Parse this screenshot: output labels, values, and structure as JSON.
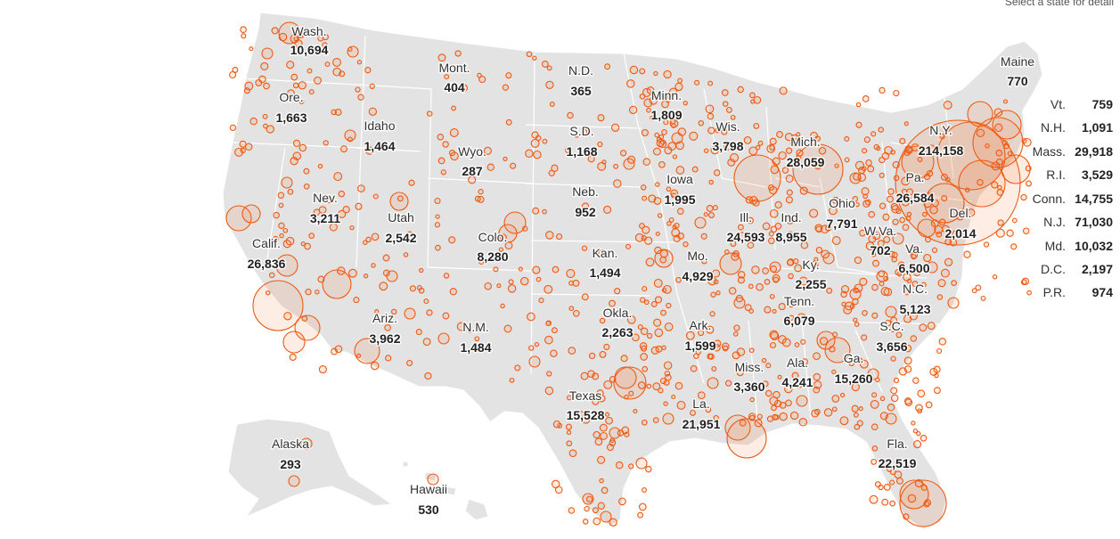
{
  "colors": {
    "land": "#e3e3e3",
    "border": "#ffffff",
    "circle_stroke": "#ee5a12",
    "circle_fill": "#f46e22",
    "text": "#222222"
  },
  "top_note": "Select a state for detail",
  "states": [
    {
      "id": "wash",
      "name": "Wash.",
      "value": "10,694"
    },
    {
      "id": "ore",
      "name": "Ore.",
      "value": "1,663"
    },
    {
      "id": "calif",
      "name": "Calif.",
      "value": "26,836"
    },
    {
      "id": "nev",
      "name": "Nev.",
      "value": "3,211"
    },
    {
      "id": "idaho",
      "name": "Idaho",
      "value": "1,464"
    },
    {
      "id": "mont",
      "name": "Mont.",
      "value": "404"
    },
    {
      "id": "wyo",
      "name": "Wyo.",
      "value": "287"
    },
    {
      "id": "utah",
      "name": "Utah",
      "value": "2,542"
    },
    {
      "id": "ariz",
      "name": "Ariz.",
      "value": "3,962"
    },
    {
      "id": "colo",
      "name": "Colo.",
      "value": "8,280"
    },
    {
      "id": "nm",
      "name": "N.M.",
      "value": "1,484"
    },
    {
      "id": "nd",
      "name": "N.D.",
      "value": "365"
    },
    {
      "id": "sd",
      "name": "S.D.",
      "value": "1,168"
    },
    {
      "id": "neb",
      "name": "Neb.",
      "value": "952"
    },
    {
      "id": "kan",
      "name": "Kan.",
      "value": "1,494"
    },
    {
      "id": "okla",
      "name": "Okla.",
      "value": "2,263"
    },
    {
      "id": "texas",
      "name": "Texas",
      "value": "15,528"
    },
    {
      "id": "minn",
      "name": "Minn.",
      "value": "1,809"
    },
    {
      "id": "iowa",
      "name": "Iowa",
      "value": "1,995"
    },
    {
      "id": "mo",
      "name": "Mo.",
      "value": "4,929"
    },
    {
      "id": "ark",
      "name": "Ark.",
      "value": "1,599"
    },
    {
      "id": "la",
      "name": "La.",
      "value": "21,951"
    },
    {
      "id": "wis",
      "name": "Wis.",
      "value": "3,798"
    },
    {
      "id": "ill",
      "name": "Ill.",
      "value": "24,593"
    },
    {
      "id": "mich",
      "name": "Mich.",
      "value": "28,059"
    },
    {
      "id": "ind",
      "name": "Ind.",
      "value": "8,955"
    },
    {
      "id": "ohio",
      "name": "Ohio",
      "value": "7,791"
    },
    {
      "id": "ky",
      "name": "Ky.",
      "value": "2,255"
    },
    {
      "id": "tenn",
      "name": "Tenn.",
      "value": "6,079"
    },
    {
      "id": "miss",
      "name": "Miss.",
      "value": "3,360"
    },
    {
      "id": "ala",
      "name": "Ala.",
      "value": "4,241"
    },
    {
      "id": "ga",
      "name": "Ga.",
      "value": "15,260"
    },
    {
      "id": "fla",
      "name": "Fla.",
      "value": "22,519"
    },
    {
      "id": "sc",
      "name": "S.C.",
      "value": "3,656"
    },
    {
      "id": "nc",
      "name": "N.C.",
      "value": "5,123"
    },
    {
      "id": "va",
      "name": "Va.",
      "value": "6,500"
    },
    {
      "id": "wva",
      "name": "W.Va.",
      "value": "702"
    },
    {
      "id": "pa",
      "name": "Pa.",
      "value": "26,584"
    },
    {
      "id": "ny",
      "name": "N.Y.",
      "value": "214,158"
    },
    {
      "id": "del",
      "name": "Del.",
      "value": "2,014"
    },
    {
      "id": "maine",
      "name": "Maine",
      "value": "770"
    },
    {
      "id": "alaska",
      "name": "Alaska",
      "value": "293"
    },
    {
      "id": "hawaii",
      "name": "Hawaii",
      "value": "530"
    }
  ],
  "side_list": [
    {
      "name": "Vt.",
      "value": "759"
    },
    {
      "name": "N.H.",
      "value": "1,091"
    },
    {
      "name": "Mass.",
      "value": "29,918"
    },
    {
      "name": "R.I.",
      "value": "3,529"
    },
    {
      "name": "Conn.",
      "value": "14,755"
    },
    {
      "name": "N.J.",
      "value": "71,030"
    },
    {
      "name": "Md.",
      "value": "10,032"
    },
    {
      "name": "D.C.",
      "value": "2,197"
    },
    {
      "name": "P.R.",
      "value": "974"
    }
  ]
}
